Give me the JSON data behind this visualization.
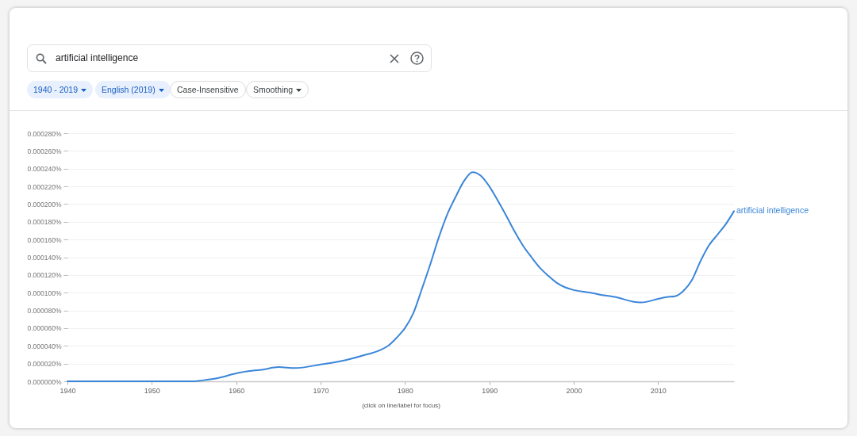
{
  "chart_data": {
    "type": "line",
    "x": [
      1940,
      1945,
      1950,
      1953,
      1955,
      1956,
      1958,
      1960,
      1962,
      1963,
      1965,
      1967,
      1970,
      1973,
      1975,
      1977,
      1978,
      1979,
      1980,
      1981,
      1982,
      1983,
      1984,
      1985,
      1986,
      1987,
      1988,
      1989,
      1990,
      1991,
      1992,
      1993,
      1994,
      1995,
      1996,
      1997,
      1998,
      1999,
      2000,
      2002,
      2003,
      2005,
      2007,
      2008,
      2010,
      2011,
      2012,
      2013,
      2014,
      2015,
      2016,
      2017,
      2018,
      2019
    ],
    "series": [
      {
        "name": "artificial intelligence",
        "color": "#3b86d9",
        "values": [
          0,
          0,
          0,
          0,
          0,
          1e-06,
          4e-06,
          9e-06,
          1.2e-05,
          1.3e-05,
          1.6e-05,
          1.5e-05,
          1.9e-05,
          2.4e-05,
          2.9e-05,
          3.5e-05,
          4e-05,
          4.9e-05,
          6e-05,
          7.7e-05,
          0.000104,
          0.000132,
          0.000162,
          0.000188,
          0.000208,
          0.000226,
          0.000236,
          0.000232,
          0.00022,
          0.000204,
          0.000187,
          0.000169,
          0.000153,
          0.00014,
          0.000128,
          0.000119,
          0.000111,
          0.000106,
          0.000103,
          0.0001,
          9.8e-05,
          9.5e-05,
          9e-05,
          8.9e-05,
          9.3e-05,
          9.5e-05,
          9.6e-05,
          0.000102,
          0.000114,
          0.000135,
          0.000153,
          0.000165,
          0.000177,
          0.000192
        ]
      }
    ],
    "xlim": [
      1940,
      2019
    ],
    "xticks": [
      1940,
      1950,
      1960,
      1970,
      1980,
      1990,
      2000,
      2010
    ],
    "ylim": [
      0,
      0.00028
    ],
    "yticks": [
      {
        "value": 0,
        "label": "0.000000%"
      },
      {
        "value": 2e-05,
        "label": "0.000020%"
      },
      {
        "value": 4e-05,
        "label": "0.000040%"
      },
      {
        "value": 6e-05,
        "label": "0.000060%"
      },
      {
        "value": 8e-05,
        "label": "0.000080%"
      },
      {
        "value": 0.0001,
        "label": "0.000100%"
      },
      {
        "value": 0.00012,
        "label": "0.000120%"
      },
      {
        "value": 0.00014,
        "label": "0.000140%"
      },
      {
        "value": 0.00016,
        "label": "0.000160%"
      },
      {
        "value": 0.00018,
        "label": "0.000180%"
      },
      {
        "value": 0.0002,
        "label": "0.000200%"
      },
      {
        "value": 0.00022,
        "label": "0.000220%"
      },
      {
        "value": 0.00024,
        "label": "0.000240%"
      },
      {
        "value": 0.00026,
        "label": "0.000260%"
      },
      {
        "value": 0.00028,
        "label": "0.000280%"
      }
    ],
    "grid": "y",
    "legend": false,
    "marker": "none",
    "annotations": [
      "artificial intelligence",
      "1940 - 2019",
      "English (2019)",
      "Case-Insensitive",
      "Smoothing",
      "(click on line/label for focus)"
    ]
  }
}
